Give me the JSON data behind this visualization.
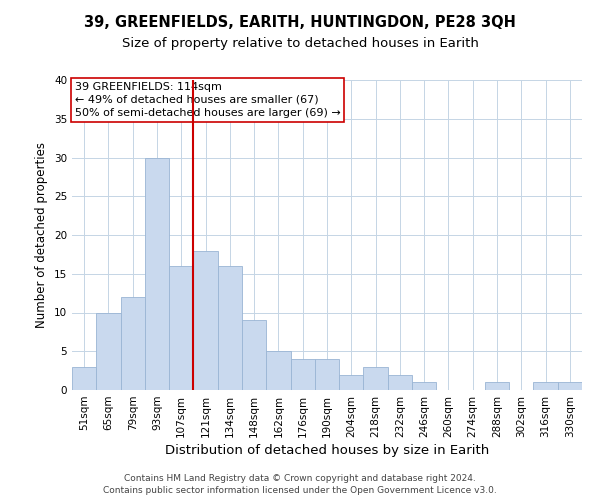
{
  "title": "39, GREENFIELDS, EARITH, HUNTINGDON, PE28 3QH",
  "subtitle": "Size of property relative to detached houses in Earith",
  "xlabel": "Distribution of detached houses by size in Earith",
  "ylabel": "Number of detached properties",
  "categories": [
    "51sqm",
    "65sqm",
    "79sqm",
    "93sqm",
    "107sqm",
    "121sqm",
    "134sqm",
    "148sqm",
    "162sqm",
    "176sqm",
    "190sqm",
    "204sqm",
    "218sqm",
    "232sqm",
    "246sqm",
    "260sqm",
    "274sqm",
    "288sqm",
    "302sqm",
    "316sqm",
    "330sqm"
  ],
  "values": [
    3,
    10,
    12,
    30,
    16,
    18,
    16,
    9,
    5,
    4,
    4,
    2,
    3,
    2,
    1,
    0,
    0,
    1,
    0,
    1,
    1
  ],
  "bar_color": "#c9d9ee",
  "bar_edge_color": "#9ab5d4",
  "vline_x": 4.5,
  "vline_color": "#cc0000",
  "ylim": [
    0,
    40
  ],
  "yticks": [
    0,
    5,
    10,
    15,
    20,
    25,
    30,
    35,
    40
  ],
  "annotation_title": "39 GREENFIELDS: 114sqm",
  "annotation_line1": "← 49% of detached houses are smaller (67)",
  "annotation_line2": "50% of semi-detached houses are larger (69) →",
  "footer_line1": "Contains HM Land Registry data © Crown copyright and database right 2024.",
  "footer_line2": "Contains public sector information licensed under the Open Government Licence v3.0.",
  "background_color": "#ffffff",
  "grid_color": "#c5d5e5",
  "title_fontsize": 10.5,
  "subtitle_fontsize": 9.5,
  "xlabel_fontsize": 9.5,
  "ylabel_fontsize": 8.5,
  "tick_fontsize": 7.5,
  "footer_fontsize": 6.5,
  "ann_fontsize": 8.0
}
